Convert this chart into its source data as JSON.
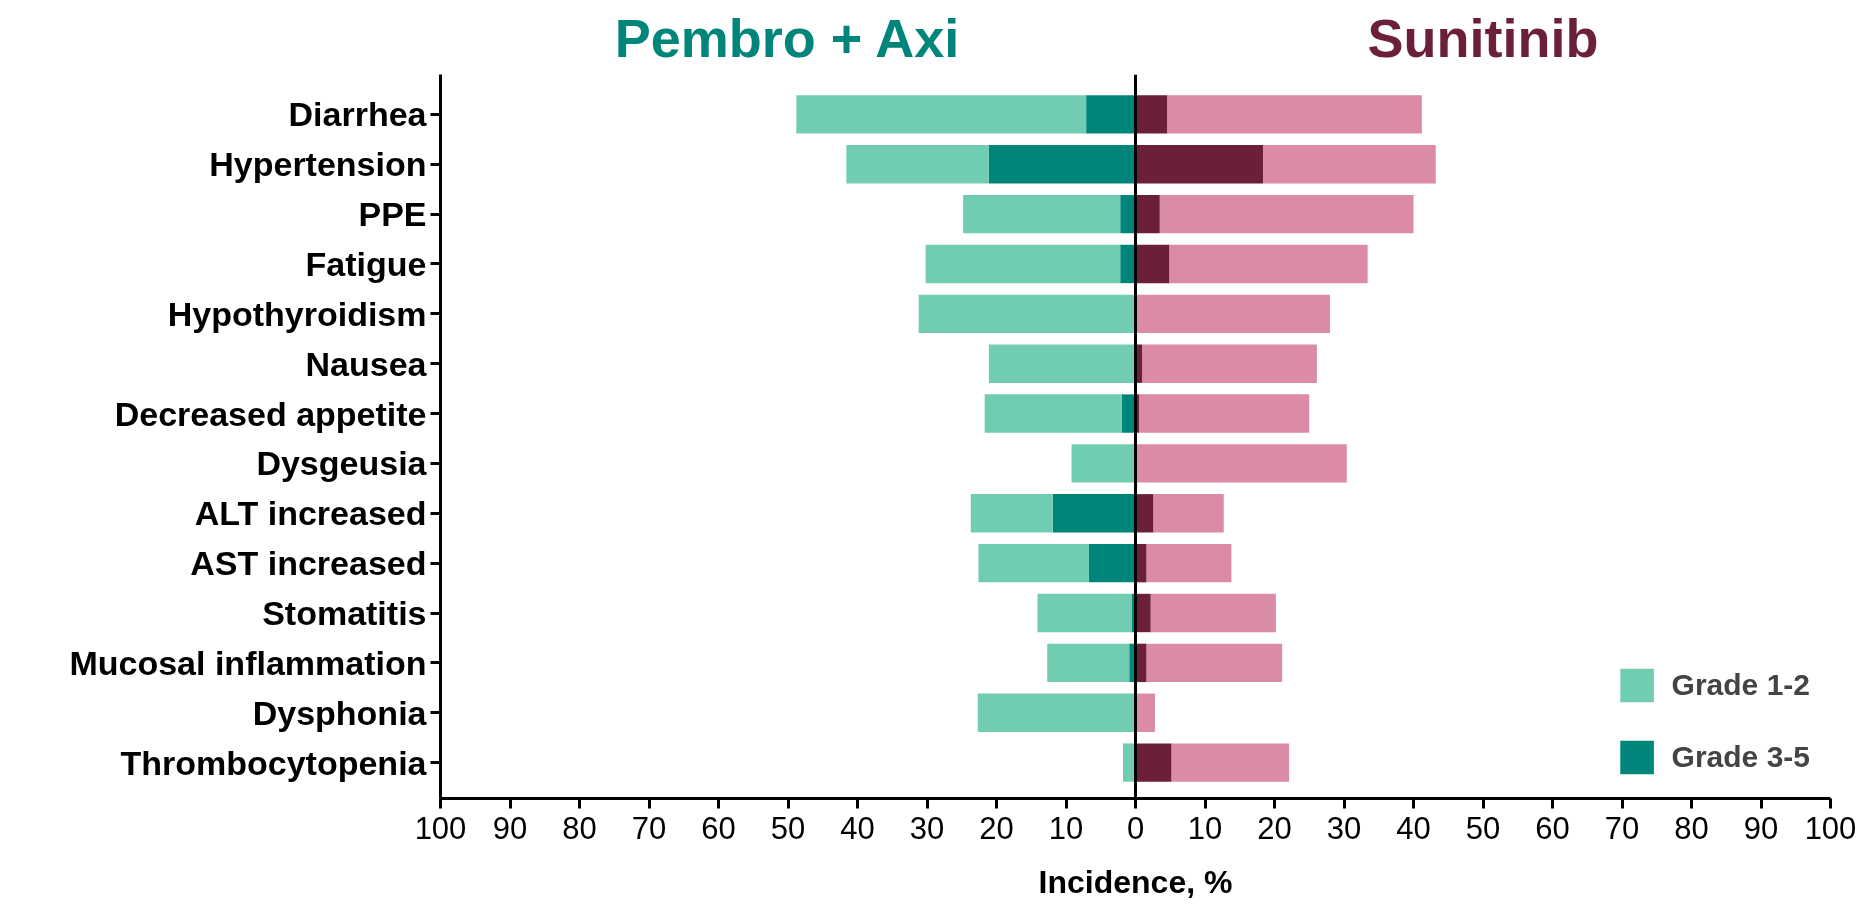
{
  "chart_data": {
    "type": "bar",
    "orientation": "horizontal",
    "stacked": true,
    "categories": [
      "Diarrhea",
      "Hypertension",
      "PPE",
      "Fatigue",
      "Hypothyroidism",
      "Nausea",
      "Decreased appetite",
      "Dysgeusia",
      "ALT increased",
      "AST increased",
      "Stomatitis",
      "Mucosal inflammation",
      "Dysphonia",
      "Thrombocytopenia"
    ],
    "series": [
      {
        "name": "Grade 3-5",
        "color": "#00857a",
        "values": [
          -7.1,
          -21.1,
          -2.2,
          -2.2,
          null,
          null,
          -2.0,
          null,
          -11.9,
          -6.7,
          -0.5,
          -0.9,
          null,
          null
        ]
      },
      {
        "name": "Grade 1-2",
        "color": "#70cdb2",
        "values": [
          -41.7,
          -20.5,
          -22.6,
          -28.0,
          -31.2,
          -21.1,
          -19.7,
          -9.2,
          -11.8,
          -15.9,
          -13.6,
          -11.8,
          -22.7,
          -1.8
        ]
      },
      {
        "color": "#6b1f3a",
        "values": [
          4.6,
          18.4,
          3.5,
          4.9,
          null,
          1.0,
          0.5,
          null,
          2.6,
          1.6,
          2.2,
          1.6,
          null,
          5.2
        ]
      },
      {
        "color": "#db8aa7",
        "values": [
          36.6,
          24.8,
          36.5,
          28.5,
          28.0,
          25.1,
          24.5,
          30.4,
          10.1,
          12.2,
          18.0,
          19.5,
          2.8,
          16.9
        ]
      }
    ],
    "xlim": [
      -100,
      100
    ],
    "xticks": [
      {
        "value": -100,
        "label": "100"
      },
      {
        "value": -90,
        "label": "90"
      },
      {
        "value": -80,
        "label": "80"
      },
      {
        "value": -70,
        "label": "70"
      },
      {
        "value": -60,
        "label": "60"
      },
      {
        "value": -50,
        "label": "50"
      },
      {
        "value": -40,
        "label": "40"
      },
      {
        "value": -30,
        "label": "30"
      },
      {
        "value": -20,
        "label": "20"
      },
      {
        "value": -10,
        "label": "10"
      },
      0,
      10,
      20,
      30,
      40,
      50,
      60,
      70,
      80,
      90,
      100
    ],
    "xlabel": "Incidence, %",
    "annotations": [
      "Pembro + Axi",
      "Sunitinib"
    ],
    "ref_lines": [
      {
        "axis": "x",
        "value": 0,
        "color": "#000000"
      }
    ],
    "legend": "bottom right",
    "grid": false
  }
}
